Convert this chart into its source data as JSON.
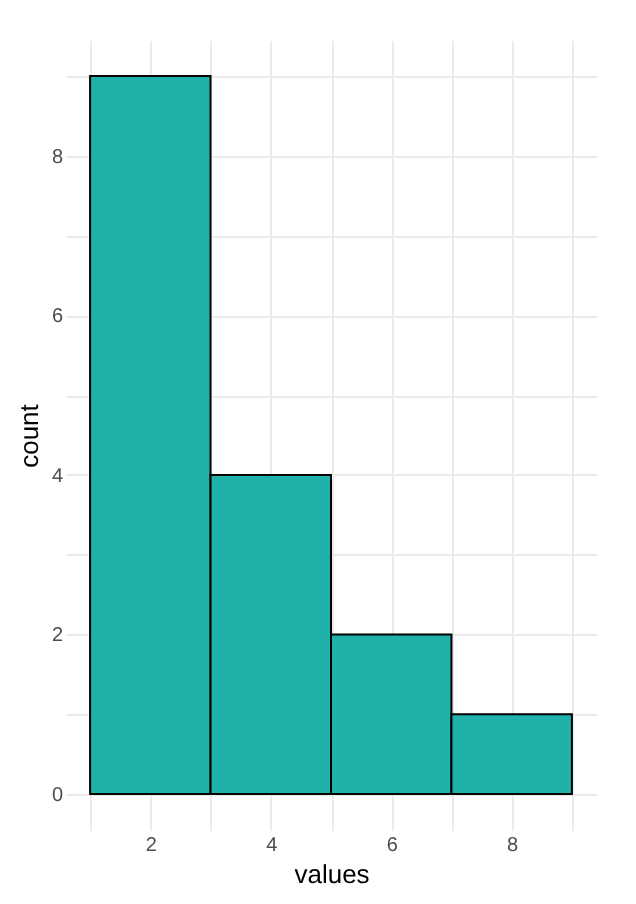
{
  "chart_data": {
    "type": "histogram",
    "xlabel": "values",
    "ylabel": "count",
    "bins": [
      1,
      3,
      5,
      7,
      9
    ],
    "values": [
      9,
      4,
      2,
      1
    ],
    "color": "#20b2aa",
    "xlim": [
      0.6,
      9.4
    ],
    "ylim": [
      -0.45,
      9.45
    ],
    "xticks": [
      {
        "value": 1,
        "label": null
      },
      2,
      {
        "value": 3,
        "label": null
      },
      4,
      {
        "value": 5,
        "label": null
      },
      6,
      {
        "value": 7,
        "label": null
      },
      8,
      {
        "value": 9,
        "label": null
      }
    ],
    "yticks": [
      0,
      {
        "value": 1,
        "label": null
      },
      2,
      {
        "value": 3,
        "label": null
      },
      4,
      {
        "value": 5,
        "label": null
      },
      6,
      {
        "value": 7,
        "label": null
      },
      8,
      {
        "value": 9,
        "label": null
      }
    ],
    "grid": true
  }
}
